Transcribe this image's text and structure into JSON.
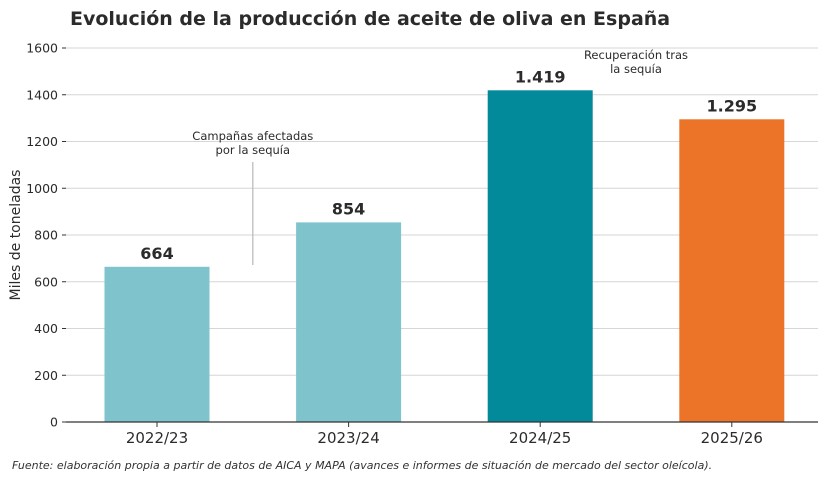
{
  "chart_data": {
    "type": "bar",
    "title": "Evolución de la producción de aceite de oliva en España",
    "ylabel": "Miles de toneladas",
    "xlabel": "",
    "categories": [
      "2022/23",
      "2023/24",
      "2024/25",
      "2025/26"
    ],
    "values": [
      664,
      854,
      1419,
      1295
    ],
    "value_labels": [
      "664",
      "854",
      "1.419",
      "1.295"
    ],
    "bar_colors": [
      "#7fc3cc",
      "#7fc3cc",
      "#02899a",
      "#ec7429"
    ],
    "ylim": [
      0,
      1600
    ],
    "yticks": [
      0,
      200,
      400,
      600,
      800,
      1000,
      1200,
      1400,
      1600
    ],
    "grid": true,
    "annotations": [
      {
        "lines": [
          "Campañas afectadas",
          "por la sequía"
        ],
        "between": [
          "2022/23",
          "2023/24"
        ],
        "y": 1150
      },
      {
        "lines": [
          "Recuperación tras",
          "la sequía"
        ],
        "between": [
          "2024/25",
          "2025/26"
        ],
        "y": 1500
      }
    ],
    "source": "Fuente: elaboración propia a partir de datos de AICA y MAPA (avances e informes de situación de mercado del sector oleícola)."
  }
}
